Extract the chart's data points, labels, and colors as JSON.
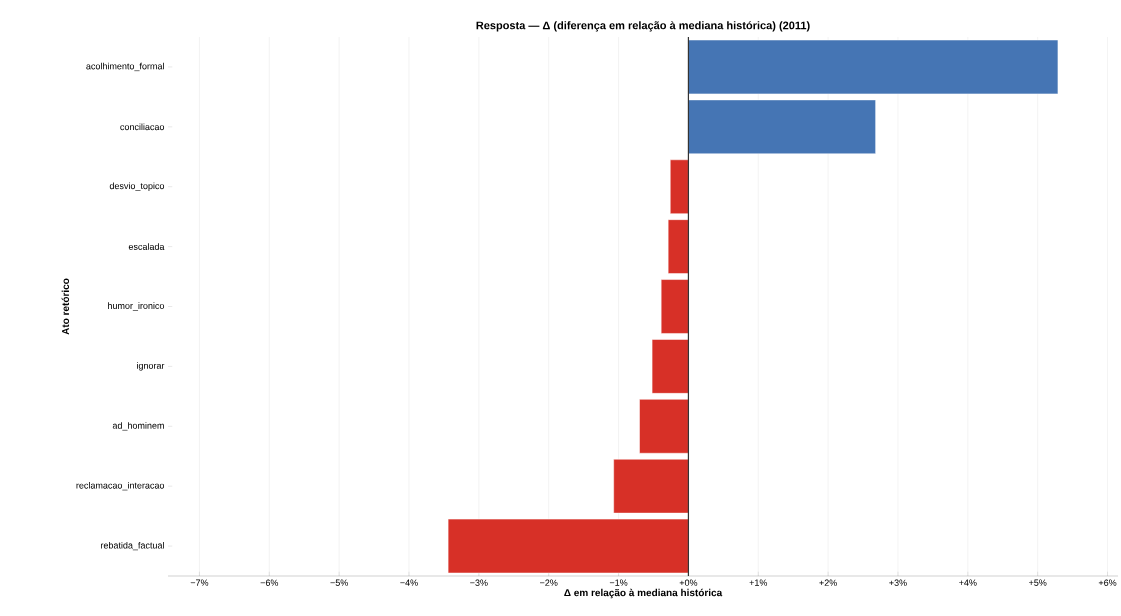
{
  "chart_data": {
    "type": "bar",
    "orientation": "horizontal",
    "title": "Resposta — Δ (diferença em relação à mediana histórica) (2011)",
    "xlabel": "Δ em relação à mediana histórica",
    "ylabel": "Ato retórico",
    "categories": [
      "acolhimento_formal",
      "conciliacao",
      "desvio_topico",
      "escalada",
      "humor_ironico",
      "ignorar",
      "ad_hominem",
      "reclamacao_interacao",
      "rebatida_factual"
    ],
    "values": [
      5.29,
      2.68,
      -0.26,
      -0.29,
      -0.39,
      -0.52,
      -0.7,
      -1.07,
      -3.44
    ],
    "colors": [
      "#4575b4",
      "#4575b4",
      "#d73027",
      "#d73027",
      "#d73027",
      "#d73027",
      "#d73027",
      "#d73027",
      "#d73027"
    ],
    "xlim": [
      -7.45,
      6.15
    ],
    "xticks": [
      {
        "value": -7,
        "label": "−7%"
      },
      {
        "value": -6,
        "label": "−6%"
      },
      {
        "value": -5,
        "label": "−5%"
      },
      {
        "value": -4,
        "label": "−4%"
      },
      {
        "value": -3,
        "label": "−3%"
      },
      {
        "value": -2,
        "label": "−2%"
      },
      {
        "value": -1,
        "label": "−1%"
      },
      {
        "value": 0,
        "label": "+0%"
      },
      {
        "value": 1,
        "label": "+1%"
      },
      {
        "value": 2,
        "label": "+2%"
      },
      {
        "value": 3,
        "label": "+3%"
      },
      {
        "value": 4,
        "label": "+4%"
      },
      {
        "value": 5,
        "label": "+5%"
      },
      {
        "value": 6,
        "label": "+6%"
      }
    ],
    "grid": "x",
    "ref_lines": [
      {
        "axis": "x",
        "value": 0,
        "color": "#333333"
      }
    ]
  }
}
